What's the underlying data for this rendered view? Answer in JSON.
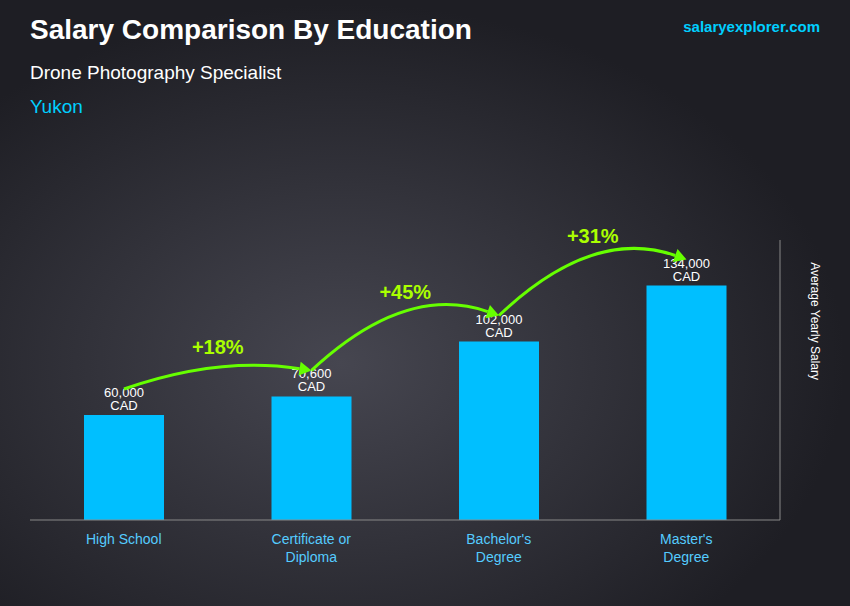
{
  "chart_data": {
    "type": "bar",
    "title": "Salary Comparison By Education",
    "subtitle": "Drone Photography Specialist",
    "annotations": [
      "Yukon",
      "salaryexplorer.com",
      "+18%",
      "+45%",
      "+31%"
    ],
    "ylabel": "Average Yearly Salary",
    "categories": [
      "High School",
      "Certificate or\nDiploma",
      "Bachelor's\nDegree",
      "Master's\nDegree"
    ],
    "values": [
      60000,
      70600,
      102000,
      134000
    ],
    "value_labels": [
      "60,000 CAD",
      "70,600 CAD",
      "102,000 CAD",
      "134,000 CAD"
    ],
    "data_labels": true,
    "color": "#00bfff",
    "ylim": [
      0,
      160000
    ],
    "grid": false,
    "tick_labels": "x"
  }
}
